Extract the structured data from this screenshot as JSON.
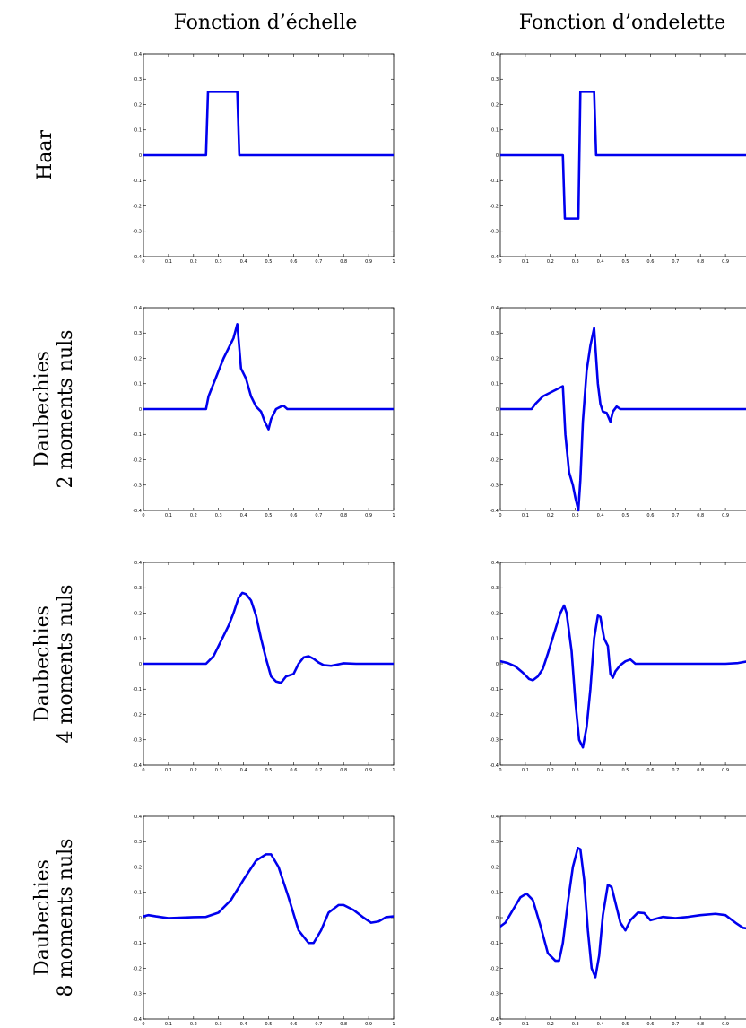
{
  "figure": {
    "column_titles": [
      "Fonction d’échelle",
      "Fonction d’ondelette"
    ],
    "row_labels": [
      [
        "Haar"
      ],
      [
        "Daubechies",
        "2 moments nuls"
      ],
      [
        "Daubechies",
        "4 moments nuls"
      ],
      [
        "Daubechies",
        "8 moments nuls"
      ]
    ],
    "line_color": "#0000ee"
  },
  "chart_data": [
    {
      "type": "line",
      "row": 0,
      "col": 0,
      "xlim": [
        0,
        1
      ],
      "ylim": [
        -0.4,
        0.4
      ],
      "xticks": [
        "0",
        "0.1",
        "0.2",
        "0.3",
        "0.4",
        "0.5",
        "0.6",
        "0.7",
        "0.8",
        "0.9",
        "1"
      ],
      "yticks": [
        "0.4",
        "0.3",
        "0.2",
        "0.1",
        "0",
        "-0.1",
        "-0.2",
        "-0.3",
        "-0.4"
      ],
      "x": [
        0,
        0.25,
        0.258,
        0.375,
        0.383,
        1
      ],
      "y": [
        0,
        0,
        0.25,
        0.25,
        0,
        0
      ]
    },
    {
      "type": "line",
      "row": 0,
      "col": 1,
      "xlim": [
        0,
        1
      ],
      "ylim": [
        -0.4,
        0.4
      ],
      "xticks": [
        "0",
        "0.1",
        "0.2",
        "0.3",
        "0.4",
        "0.5",
        "0.6",
        "0.7",
        "0.8",
        "0.9"
      ],
      "yticks": [
        "0.4",
        "0.3",
        "0.2",
        "0.1",
        "0",
        "-0.1",
        "-0.2",
        "-0.3",
        "-0.4"
      ],
      "x": [
        0,
        0.25,
        0.258,
        0.312,
        0.32,
        0.375,
        0.383,
        1
      ],
      "y": [
        0,
        0,
        -0.25,
        -0.25,
        0.25,
        0.25,
        0,
        0
      ]
    },
    {
      "type": "line",
      "row": 1,
      "col": 0,
      "xlim": [
        0,
        1
      ],
      "ylim": [
        -0.4,
        0.4
      ],
      "xticks": [
        "0",
        "0.1",
        "0.2",
        "0.3",
        "0.4",
        "0.5",
        "0.6",
        "0.7",
        "0.8",
        "0.9",
        "1"
      ],
      "yticks": [
        "0.4",
        "0.3",
        "0.2",
        "0.1",
        "0",
        "-0.1",
        "-0.2",
        "-0.3",
        "-0.4"
      ],
      "x": [
        0,
        0.25,
        0.26,
        0.28,
        0.3,
        0.32,
        0.34,
        0.36,
        0.375,
        0.39,
        0.41,
        0.43,
        0.45,
        0.47,
        0.485,
        0.5,
        0.51,
        0.53,
        0.55,
        0.56,
        0.575,
        0.6,
        1
      ],
      "y": [
        0,
        0,
        0.05,
        0.1,
        0.15,
        0.2,
        0.24,
        0.28,
        0.335,
        0.16,
        0.12,
        0.05,
        0.01,
        -0.01,
        -0.05,
        -0.08,
        -0.04,
        0,
        0.01,
        0.013,
        0,
        0,
        0
      ]
    },
    {
      "type": "line",
      "row": 1,
      "col": 1,
      "xlim": [
        0,
        1
      ],
      "ylim": [
        -0.4,
        0.4
      ],
      "xticks": [
        "0",
        "0.1",
        "0.2",
        "0.3",
        "0.4",
        "0.5",
        "0.6",
        "0.7",
        "0.8",
        "0.9"
      ],
      "yticks": [
        "0.4",
        "0.3",
        "0.2",
        "0.1",
        "0",
        "-0.1",
        "-0.2",
        "-0.3",
        "-0.4"
      ],
      "x": [
        0,
        0.125,
        0.14,
        0.17,
        0.2,
        0.23,
        0.25,
        0.26,
        0.275,
        0.29,
        0.3,
        0.312,
        0.32,
        0.33,
        0.345,
        0.36,
        0.375,
        0.39,
        0.4,
        0.41,
        0.425,
        0.44,
        0.45,
        0.465,
        0.48,
        0.5,
        1
      ],
      "y": [
        0,
        0,
        0.02,
        0.05,
        0.065,
        0.08,
        0.09,
        -0.1,
        -0.25,
        -0.3,
        -0.35,
        -0.4,
        -0.28,
        -0.05,
        0.15,
        0.25,
        0.32,
        0.1,
        0.02,
        -0.01,
        -0.015,
        -0.05,
        -0.01,
        0.01,
        0,
        0,
        0
      ]
    },
    {
      "type": "line",
      "row": 2,
      "col": 0,
      "xlim": [
        0,
        1
      ],
      "ylim": [
        -0.4,
        0.4
      ],
      "xticks": [
        "0",
        "0.1",
        "0.2",
        "0.3",
        "0.4",
        "0.5",
        "0.6",
        "0.7",
        "0.8",
        "0.9",
        "1"
      ],
      "yticks": [
        "0.4",
        "0.3",
        "0.2",
        "0.1",
        "0",
        "-0.1",
        "-0.2",
        "-0.3",
        "-0.4"
      ],
      "x": [
        0,
        0.25,
        0.28,
        0.31,
        0.34,
        0.36,
        0.38,
        0.395,
        0.41,
        0.43,
        0.45,
        0.47,
        0.49,
        0.51,
        0.53,
        0.55,
        0.57,
        0.6,
        0.62,
        0.64,
        0.66,
        0.68,
        0.7,
        0.72,
        0.75,
        0.8,
        0.85,
        1
      ],
      "y": [
        0,
        0,
        0.03,
        0.09,
        0.15,
        0.2,
        0.26,
        0.28,
        0.275,
        0.25,
        0.19,
        0.1,
        0.02,
        -0.05,
        -0.07,
        -0.075,
        -0.05,
        -0.04,
        0,
        0.025,
        0.03,
        0.02,
        0.005,
        -0.005,
        -0.008,
        0.002,
        0,
        0
      ]
    },
    {
      "type": "line",
      "row": 2,
      "col": 1,
      "xlim": [
        0,
        1
      ],
      "ylim": [
        -0.4,
        0.4
      ],
      "xticks": [
        "0",
        "0.1",
        "0.2",
        "0.3",
        "0.4",
        "0.5",
        "0.6",
        "0.7",
        "0.8",
        "0.9"
      ],
      "yticks": [
        "0.4",
        "0.3",
        "0.2",
        "0.1",
        "0",
        "-0.1",
        "-0.2",
        "-0.3",
        "-0.4"
      ],
      "x": [
        0,
        0.03,
        0.06,
        0.09,
        0.115,
        0.13,
        0.15,
        0.17,
        0.19,
        0.215,
        0.24,
        0.255,
        0.265,
        0.285,
        0.3,
        0.315,
        0.33,
        0.345,
        0.36,
        0.375,
        0.39,
        0.4,
        0.415,
        0.43,
        0.44,
        0.45,
        0.46,
        0.48,
        0.5,
        0.52,
        0.54,
        0.6,
        0.8,
        0.9,
        0.95,
        1
      ],
      "y": [
        0.01,
        0.003,
        -0.01,
        -0.035,
        -0.06,
        -0.065,
        -0.05,
        -0.02,
        0.04,
        0.12,
        0.2,
        0.23,
        0.2,
        0.05,
        -0.15,
        -0.3,
        -0.33,
        -0.25,
        -0.1,
        0.1,
        0.19,
        0.185,
        0.1,
        0.07,
        -0.04,
        -0.055,
        -0.03,
        -0.005,
        0.01,
        0.017,
        0,
        0,
        0,
        0,
        0.003,
        0.012
      ]
    },
    {
      "type": "line",
      "row": 3,
      "col": 0,
      "xlim": [
        0,
        1
      ],
      "ylim": [
        -0.4,
        0.4
      ],
      "xticks": [
        "0",
        "0.1",
        "0.2",
        "0.3",
        "0.4",
        "0.5",
        "0.6",
        "0.7",
        "0.8",
        "0.9",
        "1"
      ],
      "yticks": [
        "0.4",
        "0.3",
        "0.2",
        "0.1",
        "0",
        "-0.1",
        "-0.2",
        "-0.3",
        "-0.4"
      ],
      "x": [
        0,
        0.02,
        0.05,
        0.1,
        0.2,
        0.25,
        0.3,
        0.35,
        0.4,
        0.45,
        0.49,
        0.51,
        0.54,
        0.58,
        0.62,
        0.66,
        0.68,
        0.71,
        0.74,
        0.78,
        0.8,
        0.84,
        0.88,
        0.91,
        0.94,
        0.97,
        1
      ],
      "y": [
        0.005,
        0.01,
        0.005,
        -0.002,
        0.002,
        0.003,
        0.02,
        0.07,
        0.15,
        0.225,
        0.25,
        0.25,
        0.2,
        0.08,
        -0.05,
        -0.1,
        -0.1,
        -0.05,
        0.02,
        0.05,
        0.05,
        0.03,
        0,
        -0.02,
        -0.015,
        0.002,
        0.005
      ]
    },
    {
      "type": "line",
      "row": 3,
      "col": 1,
      "xlim": [
        0,
        1
      ],
      "ylim": [
        -0.4,
        0.4
      ],
      "xticks": [
        "0",
        "0.1",
        "0.2",
        "0.3",
        "0.4",
        "0.5",
        "0.6",
        "0.7",
        "0.8",
        "0.9"
      ],
      "yticks": [
        "0.4",
        "0.3",
        "0.2",
        "0.1",
        "0",
        "-0.1",
        "-0.2",
        "-0.3",
        "-0.4"
      ],
      "x": [
        0,
        0.02,
        0.05,
        0.08,
        0.105,
        0.13,
        0.16,
        0.19,
        0.22,
        0.235,
        0.25,
        0.27,
        0.29,
        0.31,
        0.32,
        0.335,
        0.35,
        0.365,
        0.38,
        0.395,
        0.41,
        0.43,
        0.445,
        0.46,
        0.48,
        0.5,
        0.52,
        0.55,
        0.575,
        0.6,
        0.65,
        0.7,
        0.75,
        0.8,
        0.86,
        0.9,
        0.94,
        0.97,
        1
      ],
      "y": [
        -0.035,
        -0.02,
        0.03,
        0.08,
        0.095,
        0.07,
        -0.03,
        -0.14,
        -0.17,
        -0.17,
        -0.1,
        0.06,
        0.2,
        0.275,
        0.27,
        0.15,
        -0.05,
        -0.2,
        -0.235,
        -0.15,
        0.01,
        0.13,
        0.12,
        0.06,
        -0.02,
        -0.05,
        -0.01,
        0.02,
        0.018,
        -0.01,
        0.003,
        -0.002,
        0.003,
        0.01,
        0.015,
        0.01,
        -0.02,
        -0.04,
        -0.045
      ]
    }
  ]
}
